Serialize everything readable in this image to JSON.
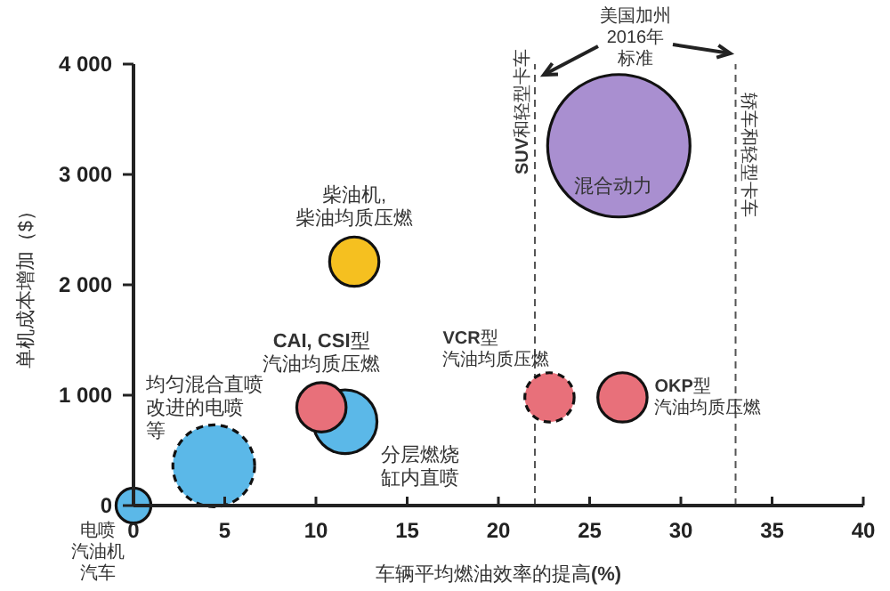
{
  "chart_data": {
    "type": "bubble",
    "xlabel": "车辆平均燃油效率的提高**(%)**",
    "ylabel": "单机成本增加（$）",
    "xlim": [
      0,
      40
    ],
    "xticks": [
      0,
      5,
      10,
      15,
      20,
      25,
      30,
      35,
      40
    ],
    "ylim": [
      0,
      4000
    ],
    "yticks": [
      0,
      {
        "value": 1000,
        "label": "1 000"
      },
      {
        "value": 2000,
        "label": "2 000"
      },
      {
        "value": 3000,
        "label": "3 000"
      },
      {
        "value": 4000,
        "label": "4 000"
      }
    ],
    "grid": false,
    "legend": false,
    "series": [
      {
        "name": "电喷汽油机汽车",
        "color": "#5bb8e8",
        "x": [
          0
        ],
        "values": [
          0
        ],
        "sizes": [
          0.06
        ]
      },
      {
        "name": "均匀混合直喷改进的电喷等",
        "color": "#5bb8e8",
        "x": [
          4.4
        ],
        "values": [
          360
        ],
        "sizes": [
          0.33
        ],
        "line_style": "dashed"
      },
      {
        "name": "分层燃烧缸内直喷",
        "color": "#5bb8e8",
        "x": [
          11.6
        ],
        "values": [
          760
        ],
        "sizes": [
          0.2
        ]
      },
      {
        "name": "**CAI, CSI**型汽油均质压燃",
        "color": "#e8707a",
        "x": [
          10.3
        ],
        "values": [
          890
        ],
        "sizes": [
          0.12
        ]
      },
      {
        "name": "柴油机,柴油均质压燃",
        "color": "#f5c020",
        "x": [
          12.1
        ],
        "values": [
          2210
        ],
        "sizes": [
          0.12
        ]
      },
      {
        "name": "混合动力",
        "color": "#a98fd0",
        "x": [
          26.6
        ],
        "values": [
          3260
        ],
        "sizes": [
          1
        ]
      },
      {
        "name": "**VCR**型汽油均质压燃",
        "color": "#e8707a",
        "x": [
          22.8
        ],
        "values": [
          980
        ],
        "sizes": [
          0.12
        ],
        "line_style": "dashed"
      },
      {
        "name": "**OKP**型汽油均质压燃",
        "color": "#e8707a",
        "x": [
          26.8
        ],
        "values": [
          980
        ],
        "sizes": [
          0.12
        ]
      }
    ],
    "ref_lines": [
      {
        "axis": "x",
        "value": 22,
        "label": "**SUV**和轻型卡车",
        "line_style": "dashed",
        "color": "#555555"
      },
      {
        "axis": "x",
        "value": 33,
        "label": "轿车和轻型卡车",
        "line_style": "dashed",
        "color": "#555555"
      }
    ],
    "annotations": [
      "美国加州2016年标准"
    ]
  }
}
